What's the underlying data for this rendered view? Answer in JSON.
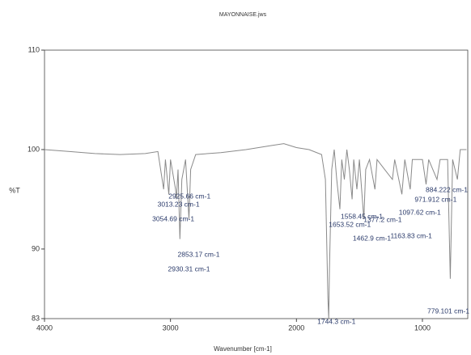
{
  "chart_data": {
    "type": "line",
    "title": "MAYONNAISE.jws",
    "xlabel": "Wavenumber [cm-1]",
    "ylabel": "%T",
    "xlim": [
      4000,
      640
    ],
    "ylim": [
      83,
      110
    ],
    "xticks": [
      4000,
      3000,
      2000,
      1000
    ],
    "yticks": [
      83,
      90,
      100,
      110
    ],
    "series": [
      {
        "name": "MAYONNAISE",
        "color": "#8a8a8a",
        "x": [
          4000,
          3800,
          3600,
          3400,
          3200,
          3100,
          3060,
          3054,
          3040,
          3013,
          3000,
          2960,
          2953,
          2940,
          2925,
          2910,
          2880,
          2853,
          2840,
          2800,
          2600,
          2400,
          2200,
          2100,
          2000,
          1900,
          1800,
          1770,
          1750,
          1744,
          1738,
          1720,
          1700,
          1680,
          1655,
          1640,
          1620,
          1600,
          1580,
          1558,
          1545,
          1520,
          1500,
          1465,
          1450,
          1420,
          1377,
          1360,
          1300,
          1238,
          1220,
          1163,
          1140,
          1097,
          1080,
          1000,
          971,
          950,
          884,
          860,
          800,
          779,
          760,
          722,
          700,
          650
        ],
        "values": [
          100,
          99.8,
          99.6,
          99.5,
          99.6,
          99.8,
          96.5,
          96,
          99,
          95.5,
          99,
          96,
          95,
          98,
          91,
          97,
          99,
          93,
          98,
          99.5,
          99.7,
          100,
          100.4,
          100.6,
          100.2,
          100,
          99.5,
          97,
          85,
          83,
          88,
          98,
          100,
          97,
          94,
          99,
          97,
          100,
          98,
          95,
          99,
          96,
          99,
          93,
          98,
          99,
          96,
          99,
          98,
          97,
          99,
          95.5,
          99,
          96,
          99,
          99,
          96.5,
          99,
          97,
          99,
          99,
          87,
          99,
          97,
          100,
          100
        ]
      }
    ],
    "annotations": [
      {
        "x": 3013.23,
        "text": "3013.23 cm-1"
      },
      {
        "x": 2925.66,
        "text": "2925.66 cm-1"
      },
      {
        "x": 3054.69,
        "text": "3054.69 cm-1"
      },
      {
        "x": 2853.17,
        "text": "2853.17 cm-1"
      },
      {
        "x": 2930.31,
        "text": "2930.31 cm-1"
      },
      {
        "x": 1744.3,
        "text": "1744.3 cm-1"
      },
      {
        "x": 1653.52,
        "text": "1653.52 cm-1"
      },
      {
        "x": 1558.45,
        "text": "1558.45 cm-1"
      },
      {
        "x": 1462.9,
        "text": "1462.9 cm-1"
      },
      {
        "x": 1377.2,
        "text": "1377.2 cm-1"
      },
      {
        "x": 1163.83,
        "text": "1163.83 cm-1"
      },
      {
        "x": 1097.62,
        "text": "1097.62 cm-1"
      },
      {
        "x": 971.912,
        "text": "971.912 cm-1"
      },
      {
        "x": 884.222,
        "text": "884.222 cm-1"
      },
      {
        "x": 779.101,
        "text": "779.101 cm-1"
      }
    ]
  }
}
